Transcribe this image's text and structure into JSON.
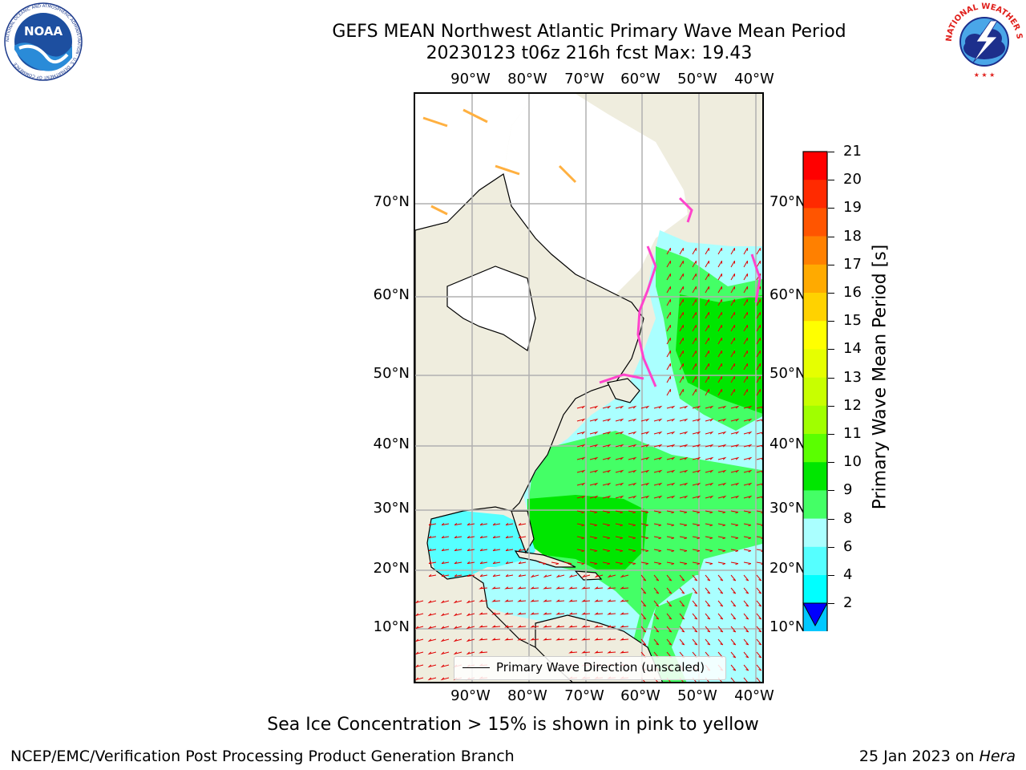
{
  "title": {
    "line1": "GEFS MEAN Northwest Atlantic Primary Wave Mean Period",
    "line2": "20230123 t06z 216h fcst   Max: 19.43"
  },
  "logos": {
    "left": {
      "name": "noaa-logo",
      "text": "NOAA",
      "ring_text": "NATIONAL OCEANIC AND ATMOSPHERIC ADMINISTRATION · U.S. DEPARTMENT OF COMMERCE"
    },
    "right": {
      "name": "nws-logo",
      "ring_text": "NATIONAL WEATHER SERVICE"
    }
  },
  "map": {
    "lon_labels": [
      "90°W",
      "80°W",
      "70°W",
      "60°W",
      "50°W",
      "40°W"
    ],
    "lat_labels": [
      "70°N",
      "60°N",
      "50°N",
      "40°N",
      "30°N",
      "20°N",
      "10°N"
    ],
    "land_color": "#efedde",
    "ocean_fill_default": "#b0f0f0",
    "grid_color": "#b0b0b0",
    "arrow_color": "#e00000",
    "legend_label": "Primary Wave Direction (unscaled)"
  },
  "colorbar": {
    "label": "Primary Wave Mean Period [s]",
    "ticks": [
      "21",
      "20",
      "19",
      "18",
      "17",
      "16",
      "15",
      "14",
      "13",
      "12",
      "11",
      "10",
      "9",
      "8",
      "6",
      "4",
      "2"
    ],
    "colors": [
      "#ff0000",
      "#ff2a00",
      "#ff5500",
      "#ff8000",
      "#ffaa00",
      "#ffd200",
      "#ffff00",
      "#e6ff00",
      "#c8ff00",
      "#a0ff00",
      "#5aff00",
      "#00e600",
      "#44ff66",
      "#aaffff",
      "#55ffff",
      "#00ffff",
      "#00c8ff",
      "#0080ff"
    ],
    "under_color": "#0000ff"
  },
  "caption": "Sea Ice Concentration > 15% is shown in pink to yellow",
  "footer": {
    "left": "NCEP/EMC/Verification Post Processing Product Generation Branch",
    "right_prefix": "25 Jan 2023 on ",
    "right_host": "Hera"
  }
}
